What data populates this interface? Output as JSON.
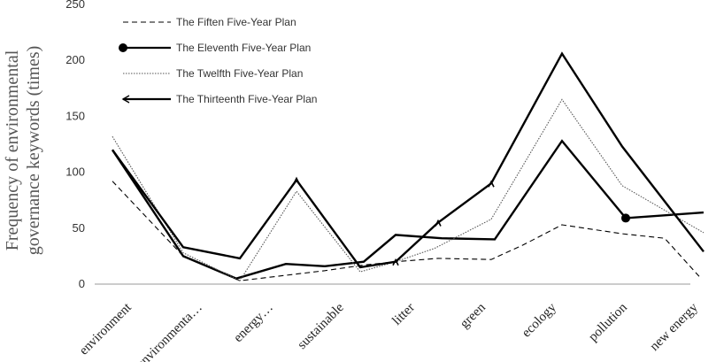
{
  "chart_data": {
    "type": "line",
    "title": "",
    "xlabel": "",
    "ylabel": "Frequency of environmental governance keywords (times)",
    "ylabel_lines": [
      "Frequency of environmental",
      "governance  keywords (times)"
    ],
    "ylim": [
      0,
      250
    ],
    "yticks": [
      0,
      50,
      100,
      150,
      200,
      250
    ],
    "grid": false,
    "legend_position": "top-left",
    "categories": [
      "environment",
      "environmenta…",
      "energy…",
      "sustainable",
      "litter",
      "green",
      "ecology",
      "pollution",
      "new energy"
    ],
    "series": [
      {
        "name": "The Fiften Five-Year Plan",
        "style": "dashed",
        "color": "#000000",
        "x": [
          0,
          1,
          1.8,
          3,
          3.55,
          4,
          4.6,
          5.35,
          5.8,
          6.35,
          7.2,
          7.8,
          8.3
        ],
        "values": [
          92,
          25,
          3,
          12,
          17,
          20,
          23,
          22,
          35,
          53,
          45,
          41,
          6
        ]
      },
      {
        "name": "The Eleventh Five-Year Plan",
        "style": "solid",
        "color": "#000000",
        "marker": "circle",
        "x": [
          0,
          1,
          1.75,
          2.45,
          3.0,
          3.55,
          4,
          4.65,
          5.4,
          6.35,
          7.25,
          8.35
        ],
        "values": [
          120,
          25,
          5,
          18,
          16,
          20,
          44,
          41,
          40,
          128,
          59,
          64
        ]
      },
      {
        "name": "The Twelfth Five-Year Plan",
        "style": "dotted",
        "color": "#555555",
        "x": [
          0,
          1,
          1.8,
          2.6,
          3.5,
          4,
          4.55,
          5.35,
          6.35,
          7.2,
          8.35
        ],
        "values": [
          132,
          28,
          3,
          83,
          11,
          20,
          32,
          58,
          165,
          88,
          46
        ]
      },
      {
        "name": "The Thirteenth Five-Year Plan",
        "style": "solid",
        "color": "#000000",
        "marker": "arrow",
        "x": [
          0,
          1,
          1.8,
          2.6,
          3.5,
          4,
          4.6,
          5.35,
          6.35,
          7.2,
          8.35
        ],
        "values": [
          120,
          33,
          23,
          93,
          15,
          20,
          55,
          90,
          206,
          123,
          29
        ]
      }
    ]
  }
}
